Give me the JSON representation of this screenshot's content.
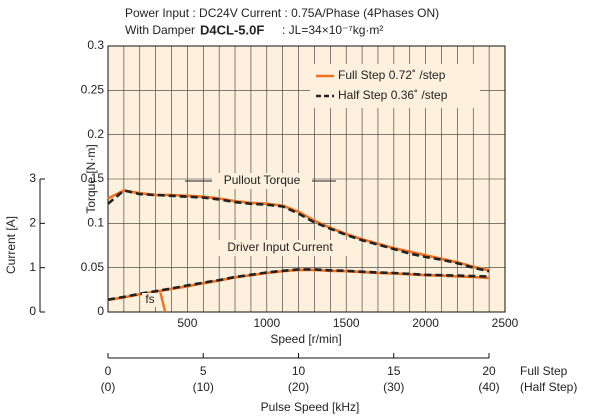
{
  "chart_data": {
    "type": "line",
    "header_line1": "Power Input : DC24V    Current : 0.75A/Phase (4Phases ON)",
    "damper_label": "With Damper",
    "model": "D4CL-5.0F",
    "inertia": ": JL=34×10⁻⁷kg·m²",
    "xlabel": "Speed [r/min]",
    "ylabel": "Torque [N·m]",
    "y2label": "Current [A]",
    "pulse_label": "Pulse Speed [kHz]",
    "pulse_full_label": "Full Step",
    "pulse_half_label": "(Half Step)",
    "torque_annotation": "Pullout Torque",
    "current_annotation": "Driver Input Current",
    "fs_annotation": "fs",
    "fs_line": {
      "x": [
        330,
        360
      ],
      "y": [
        0.022,
        0
      ]
    },
    "background": "#fdf0dc",
    "grid": true,
    "xlim": [
      0,
      2500
    ],
    "xticks": [
      500,
      1000,
      1500,
      2000,
      2500
    ],
    "x_minor_grid": [
      100,
      200,
      300,
      400,
      600,
      700,
      800,
      900,
      1100,
      1200,
      1300,
      1400,
      1600,
      1700,
      1800,
      1900,
      2100,
      2200,
      2300,
      2400
    ],
    "ylim": [
      0,
      0.3
    ],
    "yticks": [
      0,
      0.05,
      0.1,
      0.15,
      0.2,
      0.25,
      0.3
    ],
    "y2lim": [
      0,
      6
    ],
    "y2ticks": [
      0,
      1,
      2,
      3
    ],
    "pulse_lim": [
      0,
      20
    ],
    "pulse_ticks": [
      0,
      5,
      10,
      15,
      20
    ],
    "half_lim": [
      0,
      40
    ],
    "half_ticks": [
      {
        "value": 0,
        "label": "(0)"
      },
      {
        "value": 10,
        "label": "(10)"
      },
      {
        "value": 20,
        "label": "(20)"
      },
      {
        "value": 30,
        "label": "(30)"
      },
      {
        "value": 40,
        "label": "(40)"
      }
    ],
    "legend": "upper right",
    "series": [
      {
        "name": "Full Step 0.72˚ /step",
        "color": "#f07020",
        "dash": false,
        "x": [
          0,
          100,
          200,
          300,
          400,
          500,
          600,
          700,
          800,
          900,
          1000,
          1100,
          1200,
          1300,
          1400,
          1500,
          1600,
          1700,
          1800,
          1900,
          2000,
          2100,
          2200,
          2300,
          2400
        ],
        "torque": [
          0.128,
          0.137,
          0.134,
          0.132,
          0.132,
          0.131,
          0.13,
          0.128,
          0.125,
          0.123,
          0.122,
          0.12,
          0.113,
          0.103,
          0.095,
          0.088,
          0.082,
          0.077,
          0.072,
          0.068,
          0.064,
          0.06,
          0.056,
          0.051,
          0.047
        ],
        "current": [
          0.27,
          0.33,
          0.4,
          0.46,
          0.52,
          0.58,
          0.65,
          0.71,
          0.78,
          0.83,
          0.88,
          0.92,
          0.95,
          0.95,
          0.93,
          0.92,
          0.9,
          0.88,
          0.87,
          0.85,
          0.83,
          0.82,
          0.8,
          0.79,
          0.77
        ]
      },
      {
        "name": "Half Step 0.36˚ /step",
        "color": "#222222",
        "dash": true,
        "x": [
          0,
          100,
          200,
          300,
          400,
          500,
          600,
          700,
          800,
          900,
          1000,
          1100,
          1200,
          1300,
          1400,
          1500,
          1600,
          1700,
          1800,
          1900,
          2000,
          2100,
          2200,
          2300,
          2400
        ],
        "torque": [
          0.122,
          0.137,
          0.133,
          0.132,
          0.131,
          0.13,
          0.129,
          0.127,
          0.124,
          0.122,
          0.121,
          0.119,
          0.111,
          0.101,
          0.094,
          0.087,
          0.081,
          0.076,
          0.071,
          0.066,
          0.062,
          0.059,
          0.055,
          0.05,
          0.046
        ],
        "current": [
          0.28,
          0.34,
          0.41,
          0.47,
          0.53,
          0.6,
          0.66,
          0.72,
          0.79,
          0.84,
          0.89,
          0.93,
          0.96,
          0.96,
          0.94,
          0.93,
          0.91,
          0.89,
          0.88,
          0.86,
          0.84,
          0.83,
          0.82,
          0.81,
          0.8
        ]
      }
    ]
  }
}
